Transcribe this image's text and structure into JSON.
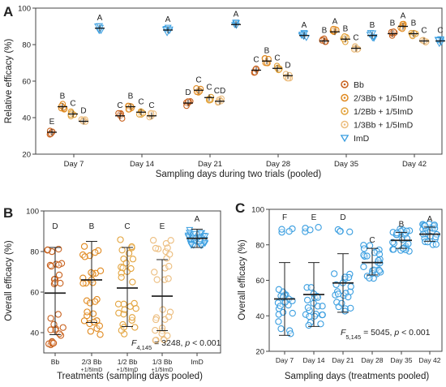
{
  "colors": {
    "Bb": "#c8601c",
    "Bb23": "#e0891f",
    "Bb12": "#e3a43e",
    "Bb13": "#ecbd7e",
    "ImD": "#3a9ee0",
    "err": "#222222"
  },
  "chart_data": [
    {
      "panel": "A",
      "type": "scatter",
      "ylabel": "Relative efficacy (%)",
      "xlabel": "Sampling days during two trials (pooled)",
      "ylim": [
        20,
        100
      ],
      "yticks": [
        "20",
        "40",
        "60",
        "80",
        "100"
      ],
      "categories": [
        "Day 7",
        "Day 14",
        "Day 21",
        "Day 28",
        "Day 35",
        "Day 42"
      ],
      "legend_position": "right",
      "series": [
        {
          "name": "Bb",
          "key": "Bb",
          "marker": "circle",
          "values": [
            32,
            41,
            48,
            66,
            82,
            86
          ],
          "letters": [
            "E",
            "C",
            "D",
            "C",
            "B",
            "B"
          ]
        },
        {
          "name": "2/3Bb + 1/5ImD",
          "key": "Bb23",
          "marker": "circle",
          "values": [
            46,
            46,
            55,
            71,
            87,
            90
          ],
          "letters": [
            "B",
            "B",
            "C",
            "B",
            "A",
            "A"
          ]
        },
        {
          "name": "1/2Bb + 1/5ImD",
          "key": "Bb12",
          "marker": "circle",
          "values": [
            42,
            43,
            51,
            67,
            83,
            86
          ],
          "letters": [
            "C",
            "C",
            "C",
            "C",
            "B",
            "B"
          ]
        },
        {
          "name": "1/3Bb + 1/5ImD",
          "key": "Bb13",
          "marker": "circle",
          "values": [
            38,
            41,
            49,
            63,
            78,
            82
          ],
          "letters": [
            "D",
            "C",
            "CD",
            "D",
            "C",
            "C"
          ]
        },
        {
          "name": "ImD",
          "key": "ImD",
          "marker": "triangle",
          "values": [
            89,
            88,
            91,
            85,
            85,
            82
          ],
          "letters": [
            "A",
            "A",
            "A",
            "A",
            "B",
            "C"
          ]
        }
      ]
    },
    {
      "panel": "B",
      "type": "scatter",
      "ylabel": "Overall efficacy (%)",
      "xlabel": "Treatments (sampling days pooled)",
      "ylim": [
        30,
        100
      ],
      "yticks": [
        "40",
        "60",
        "80",
        "100"
      ],
      "categories": [
        "Bb",
        "2/3 Bb",
        "1/2 Bb",
        "1/3 Bb",
        "ImD"
      ],
      "category_sublabels": [
        "",
        "+1/5ImD",
        "+1/5ImD",
        "+1/5ImD",
        ""
      ],
      "means": [
        59.5,
        66,
        62,
        58,
        86.5
      ],
      "sd_low": [
        39,
        45,
        43,
        41,
        82
      ],
      "sd_high": [
        82,
        85,
        82,
        76,
        91
      ],
      "letters": [
        "D",
        "B",
        "C",
        "E",
        "A"
      ],
      "stat_text": {
        "F": "F",
        "df": "4,145",
        "rest": " = 3248, ",
        "p": "p",
        "p_rest": " < 0.001"
      }
    },
    {
      "panel": "C",
      "type": "scatter",
      "ylabel": "Overall efficacy (%)",
      "xlabel": "Sampling days  (treatments pooled)",
      "ylim": [
        20,
        100
      ],
      "yticks": [
        "20",
        "40",
        "60",
        "80",
        "100"
      ],
      "categories": [
        "Day 7",
        "Day 14",
        "Day 21",
        "Day 28",
        "Day 35",
        "Day 42"
      ],
      "means": [
        49.5,
        52,
        58.5,
        70,
        82.5,
        86
      ],
      "sd_low": [
        29,
        34,
        42,
        63,
        78,
        82
      ],
      "sd_high": [
        70,
        70,
        75,
        78,
        87,
        90
      ],
      "letters": [
        "F",
        "E",
        "D",
        "C",
        "B",
        "A"
      ],
      "stat_text": {
        "F": "F",
        "df": "5,145",
        "rest": " = 5045, ",
        "p": "p",
        "p_rest": " < 0.001"
      }
    }
  ]
}
